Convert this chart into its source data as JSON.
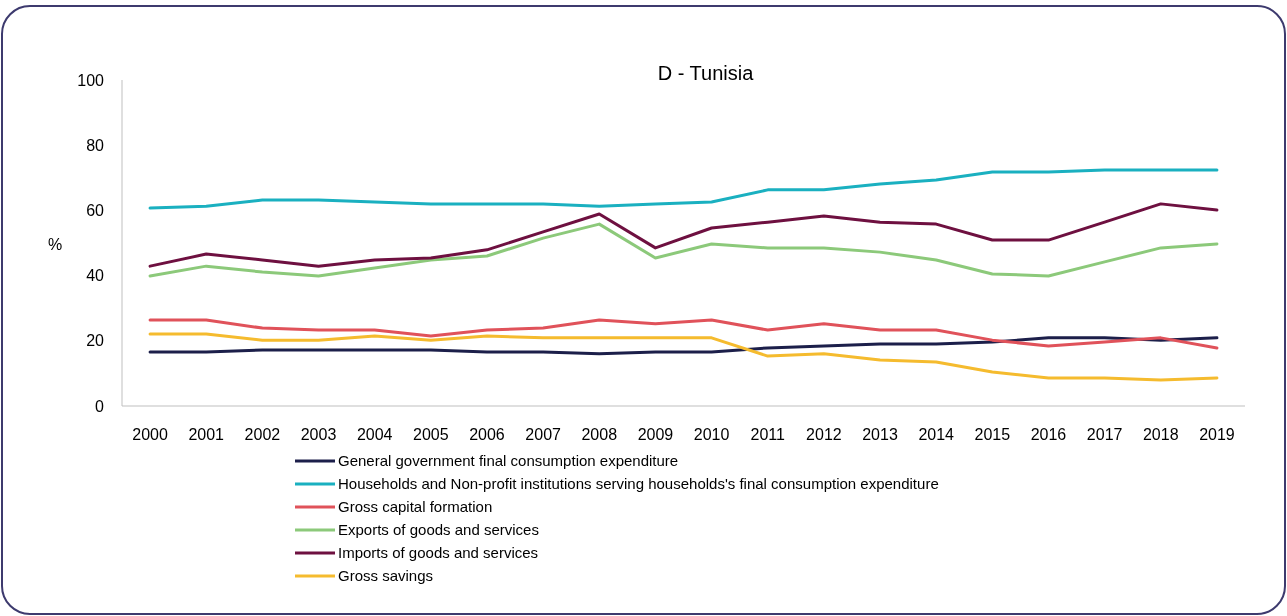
{
  "chart_data": {
    "type": "line",
    "title": "D - Tunisia",
    "ylabel": "%",
    "categories": [
      "2000",
      "2001",
      "2002",
      "2003",
      "2004",
      "2005",
      "2006",
      "2007",
      "2008",
      "2009",
      "2010",
      "2011",
      "2012",
      "2013",
      "2014",
      "2015",
      "2016",
      "2017",
      "2018",
      "2019"
    ],
    "ylim": [
      0,
      100
    ],
    "yticks": [
      0,
      20,
      40,
      60,
      80,
      100
    ],
    "grid": false,
    "legend": "bottom",
    "marker": "none",
    "line_style": "solid",
    "series": [
      {
        "name": "General government final consumption expenditure",
        "color": "#1c1f4a",
        "values": [
          16.6,
          16.6,
          17.2,
          17.2,
          17.2,
          17.2,
          16.6,
          16.6,
          16,
          16.6,
          16.6,
          17.8,
          18.4,
          19,
          19,
          19.6,
          20.9,
          20.9,
          20.2,
          20.9
        ]
      },
      {
        "name": "Households and Non-profit institutions serving households's final consumption expenditure",
        "color": "#1ab0c0",
        "values": [
          60.7,
          61.3,
          63.2,
          63.2,
          62.6,
          62,
          62,
          62,
          61.3,
          62,
          62.6,
          66.3,
          66.3,
          68.1,
          69.3,
          71.8,
          71.8,
          72.4,
          72.4,
          72.4
        ]
      },
      {
        "name": "Gross capital formation",
        "color": "#e0525a",
        "values": [
          26.4,
          26.4,
          23.9,
          23.3,
          23.3,
          21.5,
          23.3,
          23.9,
          26.4,
          25.2,
          26.4,
          23.3,
          25.2,
          23.3,
          23.3,
          20.2,
          18.4,
          19.6,
          20.9,
          17.8
        ]
      },
      {
        "name": "Exports of goods and services",
        "color": "#8cc97a",
        "values": [
          39.9,
          42.9,
          41.1,
          39.9,
          42.3,
          44.8,
          46,
          51.5,
          55.8,
          45.4,
          49.7,
          48.5,
          48.5,
          47.2,
          44.8,
          40.5,
          39.9,
          44.2,
          48.5,
          49.7
        ]
      },
      {
        "name": "Imports of goods and services",
        "color": "#6e1040",
        "values": [
          42.9,
          46.6,
          44.8,
          42.9,
          44.8,
          45.4,
          47.9,
          53.4,
          58.9,
          48.5,
          54.6,
          56.4,
          58.3,
          56.4,
          55.8,
          50.9,
          50.9,
          56.4,
          62,
          60.1
        ]
      },
      {
        "name": "Gross savings",
        "color": "#f5bb2e",
        "values": [
          22.1,
          22.1,
          20.2,
          20.2,
          21.5,
          20.2,
          21.5,
          20.9,
          20.9,
          20.9,
          20.9,
          15.3,
          16,
          14.1,
          13.5,
          10.4,
          8.6,
          8.6,
          8,
          8.6
        ]
      }
    ]
  }
}
